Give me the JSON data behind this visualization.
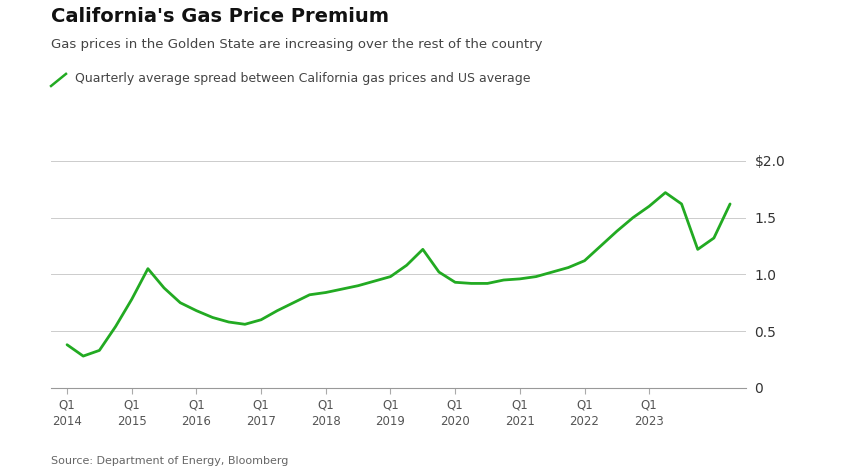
{
  "title": "California's Gas Price Premium",
  "subtitle": "Gas prices in the Golden State are increasing over the rest of the country",
  "legend_label": "Quarterly average spread between California gas prices and US average",
  "source": "Source: Department of Energy, Bloomberg",
  "line_color": "#22aa22",
  "background_color": "#ffffff",
  "ylim": [
    0,
    2.0
  ],
  "yticks": [
    0,
    0.5,
    1.0,
    1.5,
    2.0
  ],
  "ytick_labels": [
    "0",
    "0.5",
    "1.0",
    "1.5",
    "$2.0"
  ],
  "x_labels": [
    "Q1\n2014",
    "Q1\n2015",
    "Q1\n2016",
    "Q1\n2017",
    "Q1\n2018",
    "Q1\n2019",
    "Q1\n2020",
    "Q1\n2021",
    "Q1\n2022",
    "Q1\n2023"
  ],
  "data": [
    0.38,
    0.28,
    0.33,
    0.54,
    0.78,
    1.05,
    0.88,
    0.75,
    0.68,
    0.62,
    0.58,
    0.56,
    0.6,
    0.68,
    0.75,
    0.82,
    0.84,
    0.87,
    0.9,
    0.94,
    0.98,
    1.08,
    1.22,
    1.02,
    0.93,
    0.92,
    0.92,
    0.95,
    0.96,
    0.98,
    1.02,
    1.06,
    1.12,
    1.25,
    1.38,
    1.5,
    1.6,
    1.72,
    1.62,
    1.22,
    1.32,
    1.62
  ],
  "n_quarters": 42,
  "xtick_indices": [
    0,
    4,
    8,
    12,
    16,
    20,
    24,
    28,
    32,
    36
  ]
}
